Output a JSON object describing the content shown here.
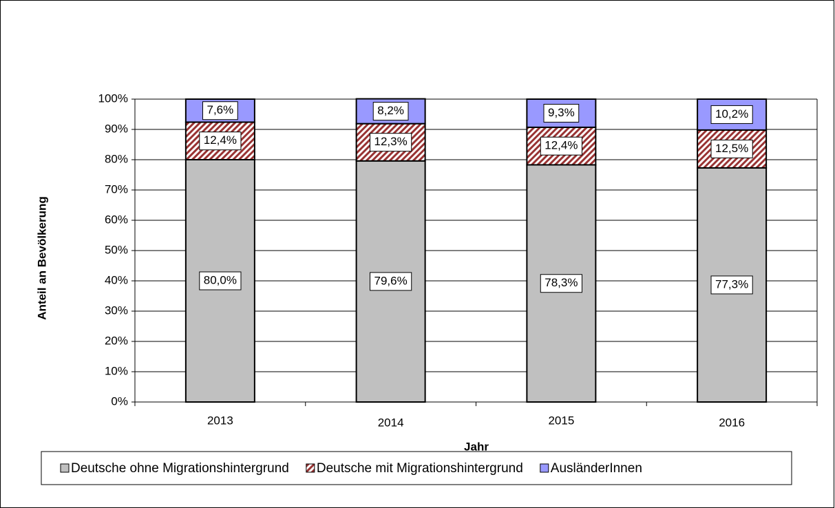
{
  "chart_data": {
    "type": "stacked_bar",
    "x_label": "Jahr",
    "y_label": "Anteil an Bevölkerung",
    "categories": [
      "2013",
      "2014",
      "2015",
      "2016"
    ],
    "series": [
      {
        "name": "Deutsche ohne Migrationshintergrund",
        "color": "#c0c0c0",
        "values": [
          80.0,
          79.6,
          78.3,
          77.3
        ],
        "value_labels": [
          "80,0%",
          "79,6%",
          "78,3%",
          "77,3%"
        ]
      },
      {
        "name": "Deutsche mit Migrationshintergrund",
        "color": "#993333",
        "pattern": "diagonal",
        "values": [
          12.4,
          12.3,
          12.4,
          12.5
        ],
        "value_labels": [
          "12,4%",
          "12,3%",
          "12,4%",
          "12,5%"
        ]
      },
      {
        "name": "AusländerInnen",
        "color": "#9999ff",
        "values": [
          7.6,
          8.2,
          9.3,
          10.2
        ],
        "value_labels": [
          "7,6%",
          "8,2%",
          "9,3%",
          "10,2%"
        ]
      }
    ],
    "ylim": [
      0,
      100
    ],
    "yticks": [
      {
        "value": 0,
        "label": "0%"
      },
      {
        "value": 10,
        "label": "10%"
      },
      {
        "value": 20,
        "label": "20%"
      },
      {
        "value": 30,
        "label": "30%"
      },
      {
        "value": 40,
        "label": "40%"
      },
      {
        "value": 50,
        "label": "50%"
      },
      {
        "value": 60,
        "label": "60%"
      },
      {
        "value": 70,
        "label": "70%"
      },
      {
        "value": 80,
        "label": "80%"
      },
      {
        "value": 90,
        "label": "90%"
      },
      {
        "value": 100,
        "label": "100%"
      }
    ],
    "grid": true,
    "legend": "bottom"
  }
}
